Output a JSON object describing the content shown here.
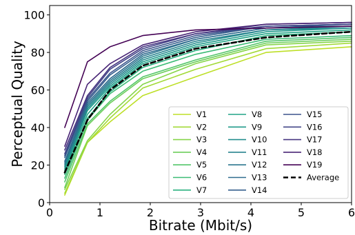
{
  "chart_data": {
    "type": "line",
    "xlabel": "Bitrate (Mbit/s)",
    "ylabel": "Perceptual Quality",
    "xlim": [
      0,
      6
    ],
    "ylim": [
      0,
      105
    ],
    "xticks": [
      0,
      1,
      2,
      3,
      4,
      5,
      6
    ],
    "yticks": [
      0,
      20,
      40,
      60,
      80,
      100
    ],
    "grid": false,
    "legend_position": "lower-right",
    "x": [
      0.3,
      0.75,
      1.2,
      1.85,
      2.9,
      4.3,
      6.0
    ],
    "series": [
      {
        "name": "V1",
        "color": "#bddf26",
        "values": [
          4,
          32,
          43,
          57,
          67,
          80,
          83
        ]
      },
      {
        "name": "V2",
        "color": "#a2da37",
        "values": [
          5,
          32,
          45,
          61,
          71,
          82,
          85
        ]
      },
      {
        "name": "V3",
        "color": "#86d549",
        "values": [
          7,
          33,
          47,
          63,
          74,
          84,
          86
        ]
      },
      {
        "name": "V4",
        "color": "#6ccd5a",
        "values": [
          8,
          41,
          53,
          66,
          75,
          85,
          87
        ]
      },
      {
        "name": "V5",
        "color": "#52c569",
        "values": [
          11,
          42,
          54,
          67,
          76,
          86,
          88
        ]
      },
      {
        "name": "V6",
        "color": "#3bbb75",
        "values": [
          13,
          44,
          58,
          70,
          79,
          87,
          89
        ]
      },
      {
        "name": "V7",
        "color": "#2ab07f",
        "values": [
          15,
          45,
          59,
          72,
          81,
          89,
          91
        ]
      },
      {
        "name": "V8",
        "color": "#20a486",
        "values": [
          17,
          47,
          61,
          74,
          83,
          90,
          92
        ]
      },
      {
        "name": "V9",
        "color": "#1f9a8a",
        "values": [
          18,
          49,
          62,
          75,
          84,
          91,
          93
        ]
      },
      {
        "name": "V10",
        "color": "#228d8d",
        "values": [
          19,
          50,
          63,
          76,
          85,
          92,
          93
        ]
      },
      {
        "name": "V11",
        "color": "#26828e",
        "values": [
          20,
          51,
          64,
          77,
          86,
          92,
          94
        ]
      },
      {
        "name": "V12",
        "color": "#2a768e",
        "values": [
          21,
          52,
          65,
          78,
          87,
          93,
          94
        ]
      },
      {
        "name": "V13",
        "color": "#2f6b8e",
        "values": [
          22,
          53,
          66,
          79,
          87,
          93,
          95
        ]
      },
      {
        "name": "V14",
        "color": "#355f8d",
        "values": [
          24,
          54,
          68,
          80,
          88,
          94,
          95
        ]
      },
      {
        "name": "V15",
        "color": "#3b528b",
        "values": [
          25,
          55,
          69,
          81,
          89,
          94,
          95
        ]
      },
      {
        "name": "V16",
        "color": "#414487",
        "values": [
          26,
          56,
          71,
          82,
          90,
          94,
          95
        ]
      },
      {
        "name": "V17",
        "color": "#463480",
        "values": [
          28,
          57,
          72,
          83,
          90,
          95,
          96
        ]
      },
      {
        "name": "V18",
        "color": "#482475",
        "values": [
          30,
          63,
          74,
          84,
          91,
          95,
          96
        ]
      },
      {
        "name": "V19",
        "color": "#440154",
        "values": [
          40,
          75,
          83,
          89,
          92,
          93,
          94
        ]
      },
      {
        "name": "Average",
        "color": "#000000",
        "dashed": true,
        "values": [
          16,
          44,
          60,
          73,
          82,
          88,
          91
        ]
      }
    ]
  }
}
